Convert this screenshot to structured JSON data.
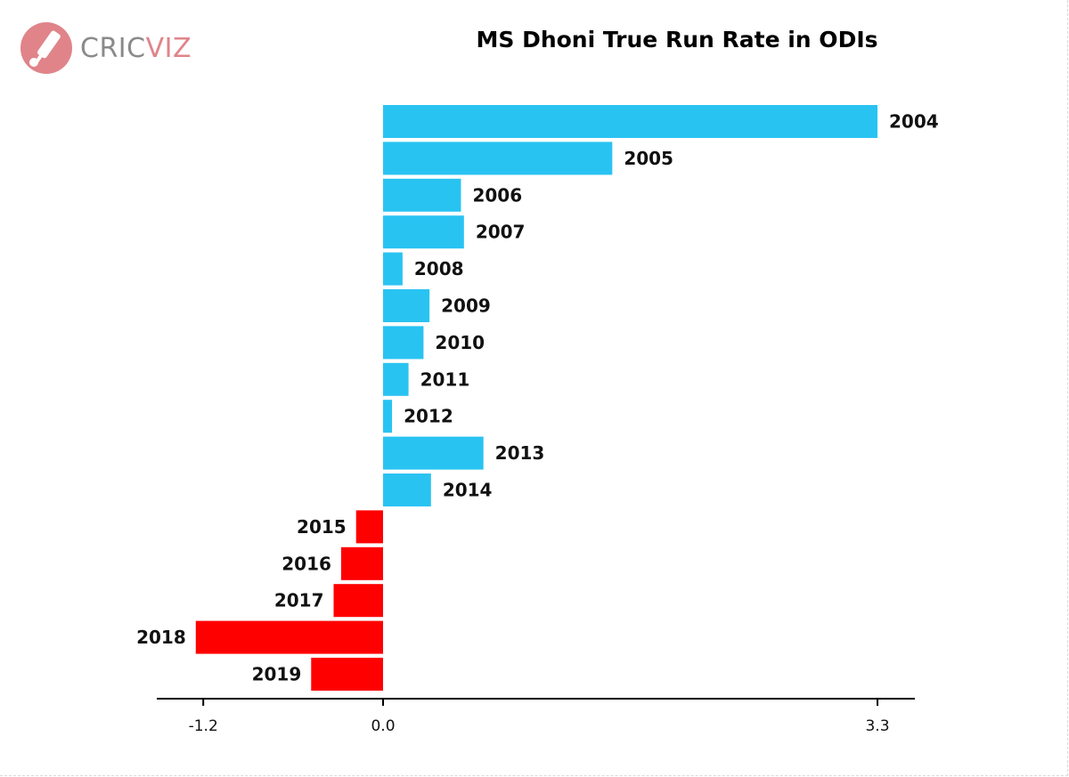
{
  "logo": {
    "brand_part1": "CRIC",
    "brand_part2": "VIZ",
    "icon": "cricket-bat-ball-icon"
  },
  "colors": {
    "positive": "#29c3f2",
    "negative": "#ff0000",
    "logo_grey": "#8a8a8a",
    "logo_pink": "#e0848a"
  },
  "chart_data": {
    "type": "bar",
    "orientation": "horizontal",
    "title": "MS Dhoni True Run Rate in ODIs",
    "xlabel": "",
    "ylabel": "",
    "xlim": [
      -1.2,
      3.3
    ],
    "x_ticks": [
      "-1.2",
      "0.0",
      "3.3"
    ],
    "grid": false,
    "categories": [
      "2004",
      "2005",
      "2006",
      "2007",
      "2008",
      "2009",
      "2010",
      "2011",
      "2012",
      "2013",
      "2014",
      "2015",
      "2016",
      "2017",
      "2018",
      "2019"
    ],
    "values": [
      3.3,
      1.53,
      0.52,
      0.54,
      0.13,
      0.31,
      0.27,
      0.17,
      0.06,
      0.67,
      0.32,
      -0.18,
      -0.28,
      -0.33,
      -1.25,
      -0.48
    ]
  }
}
